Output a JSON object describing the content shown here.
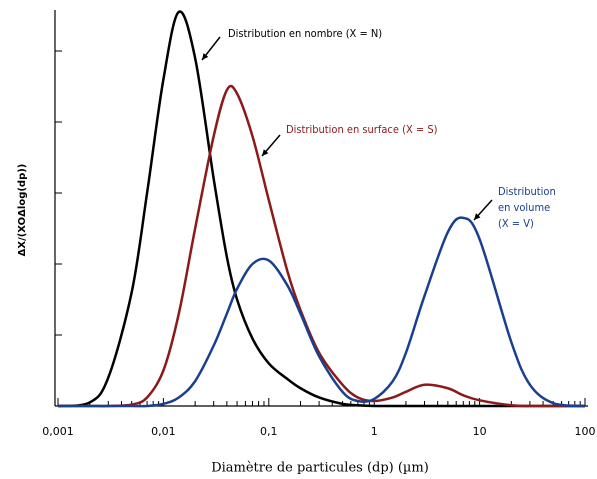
{
  "chart_data": {
    "type": "line",
    "x_label": "Diamètre de particules (dp) (µm)",
    "y_label": "ΔX/(XOΔlog(dp))",
    "log_x": true,
    "x": [
      0.001,
      0.002,
      0.003,
      0.005,
      0.007,
      0.01,
      0.014,
      0.02,
      0.03,
      0.04,
      0.05,
      0.07,
      0.1,
      0.15,
      0.2,
      0.3,
      0.5,
      0.7,
      1,
      1.5,
      2,
      3,
      5,
      7,
      10,
      20,
      30,
      50,
      100
    ],
    "series": [
      {
        "name": "Distribution en nombre (X = N)",
        "color": "#000000",
        "values": [
          0,
          0.05,
          0.4,
          1.6,
          3.0,
          4.6,
          5.55,
          4.9,
          3.2,
          2.1,
          1.5,
          0.95,
          0.6,
          0.38,
          0.25,
          0.12,
          0.03,
          0.01,
          0,
          0,
          0,
          0,
          0,
          0,
          0,
          0,
          0,
          0,
          0
        ]
      },
      {
        "name": "Distribution en surface (X = S)",
        "color": "#8b1a1a",
        "values": [
          0,
          0,
          0,
          0.02,
          0.12,
          0.5,
          1.3,
          2.5,
          3.8,
          4.45,
          4.4,
          3.8,
          2.9,
          1.9,
          1.35,
          0.75,
          0.3,
          0.12,
          0.07,
          0.12,
          0.2,
          0.3,
          0.25,
          0.15,
          0.08,
          0.01,
          0,
          0,
          0
        ]
      },
      {
        "name": "Distribution en volume (X = V)",
        "color": "#1a3f8f",
        "values": [
          0,
          0,
          0,
          0,
          0,
          0.03,
          0.12,
          0.35,
          0.85,
          1.3,
          1.65,
          2.0,
          2.05,
          1.7,
          1.3,
          0.7,
          0.2,
          0.07,
          0.1,
          0.35,
          0.75,
          1.55,
          2.45,
          2.65,
          2.35,
          0.9,
          0.3,
          0.04,
          0
        ]
      }
    ],
    "annotations": [
      {
        "lines": [
          "Distribution en nombre (X = N)"
        ],
        "color": "#000000"
      },
      {
        "lines": [
          "Distribution en surface (X = S)"
        ],
        "color": "#8b1a1a"
      },
      {
        "lines": [
          "Distribution",
          "en volume",
          "(X = V)"
        ],
        "color": "#1a3f8f"
      }
    ],
    "xlim": [
      0.001,
      100
    ],
    "xticks": [
      {
        "value": 0.001,
        "label": "0,001"
      },
      {
        "value": 0.01,
        "label": "0,01"
      },
      {
        "value": 0.1,
        "label": "0,1"
      },
      1,
      10,
      100
    ],
    "ylim": [
      0,
      5.6
    ],
    "yticks": [
      0,
      1,
      2,
      3,
      4,
      5
    ]
  }
}
